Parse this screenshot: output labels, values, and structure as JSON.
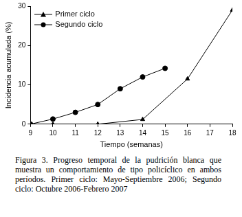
{
  "chart_data": {
    "type": "line",
    "x_label": "Tiempo (semanas)",
    "y_label": "Incidencia acumulada (%)",
    "caption": "Figura 3. Progreso temporal de la pudrición blanca que muestra un comportamiento de tipo policíclico en ambos períodos. Primer ciclo: Mayo-Septiembre 2006; Segundo ciclo: Octubre 2006-Febrero 2007",
    "xlim": [
      9,
      18
    ],
    "xticks": [
      9,
      10,
      11,
      12,
      13,
      14,
      15,
      16,
      17,
      18
    ],
    "ylim": [
      0,
      30
    ],
    "yticks": [
      0,
      10,
      20,
      30
    ],
    "grid": false,
    "legend": "upper left",
    "series": [
      {
        "name": "Primer ciclo",
        "color": "#000000",
        "marker": "triangle",
        "line_style": "solid",
        "x": [
          9,
          10,
          12,
          14,
          16,
          18
        ],
        "values": [
          0,
          0,
          0,
          1.2,
          11.5,
          29
        ]
      },
      {
        "name": "Segundo ciclo",
        "color": "#000000",
        "marker": "circle",
        "line_style": "solid",
        "x": [
          9,
          10,
          11,
          12,
          13,
          14,
          15
        ],
        "values": [
          0,
          1.3,
          3,
          5,
          9,
          12,
          14.2
        ]
      }
    ]
  }
}
